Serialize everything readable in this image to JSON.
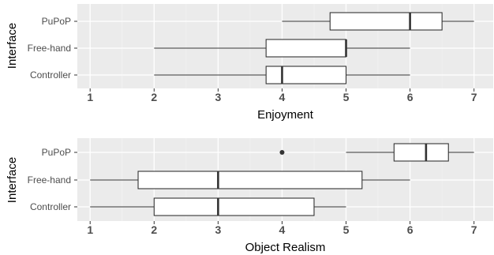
{
  "chart_data": [
    {
      "type": "boxplot",
      "orientation": "horizontal",
      "xlabel": "Enjoyment",
      "ylabel": "Interface",
      "xlim": [
        0.8,
        7.3
      ],
      "xticks": [
        1,
        2,
        3,
        4,
        5,
        6,
        7
      ],
      "grid": true,
      "categories": [
        "PuPoP",
        "Free-hand",
        "Controller"
      ],
      "boxes": [
        {
          "category": "PuPoP",
          "min": 4,
          "q1": 4.75,
          "median": 6,
          "q3": 6.5,
          "max": 7,
          "outliers": []
        },
        {
          "category": "Free-hand",
          "min": 2,
          "q1": 3.75,
          "median": 5,
          "q3": 5,
          "max": 6,
          "outliers": []
        },
        {
          "category": "Controller",
          "min": 2,
          "q1": 3.75,
          "median": 4,
          "q3": 5,
          "max": 6,
          "outliers": []
        }
      ]
    },
    {
      "type": "boxplot",
      "orientation": "horizontal",
      "xlabel": "Object Realism",
      "ylabel": "Interface",
      "xlim": [
        0.8,
        7.3
      ],
      "xticks": [
        1,
        2,
        3,
        4,
        5,
        6,
        7
      ],
      "grid": true,
      "categories": [
        "PuPoP",
        "Free-hand",
        "Controller"
      ],
      "boxes": [
        {
          "category": "PuPoP",
          "min": 5,
          "q1": 5.75,
          "median": 6.25,
          "q3": 6.6,
          "max": 7,
          "outliers": [
            4
          ]
        },
        {
          "category": "Free-hand",
          "min": 1,
          "q1": 1.75,
          "median": 3,
          "q3": 5.25,
          "max": 6,
          "outliers": []
        },
        {
          "category": "Controller",
          "min": 1,
          "q1": 2,
          "median": 3,
          "q3": 4.5,
          "max": 5,
          "outliers": []
        }
      ]
    }
  ],
  "colors": {
    "panel": "#ebebeb",
    "grid_major": "#ffffff",
    "grid_minor": "#f2f2f2",
    "box_fill": "#ffffff",
    "box_stroke": "#333333",
    "text": "#4d4d4d"
  }
}
